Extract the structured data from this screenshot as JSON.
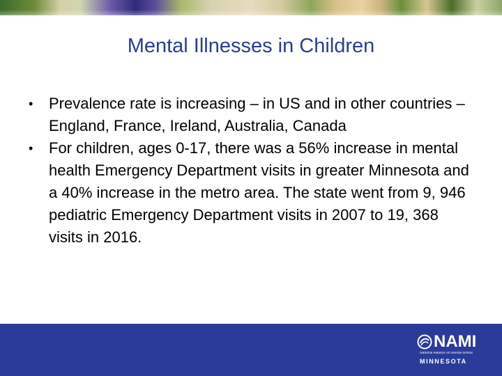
{
  "slide": {
    "title": "Mental Illnesses in Children",
    "bullet_marker": "•",
    "bullets": [
      "Prevalence rate is increasing – in US and in other countries – England, France, Ireland, Australia, Canada",
      "For children, ages 0-17, there was a 56% increase in mental health Emergency Department visits in greater Minnesota and a 40% increase in the metro area. The state went from 9, 946 pediatric Emergency Department visits in 2007 to 19, 368 visits in 2016."
    ]
  },
  "logo": {
    "wordmark": "NAMI",
    "tagline": "National Alliance on Mental Illness",
    "state": "MINNESOTA"
  },
  "colors": {
    "title": "#2b3d8f",
    "footer": "#2a3b99",
    "text": "#000000"
  }
}
